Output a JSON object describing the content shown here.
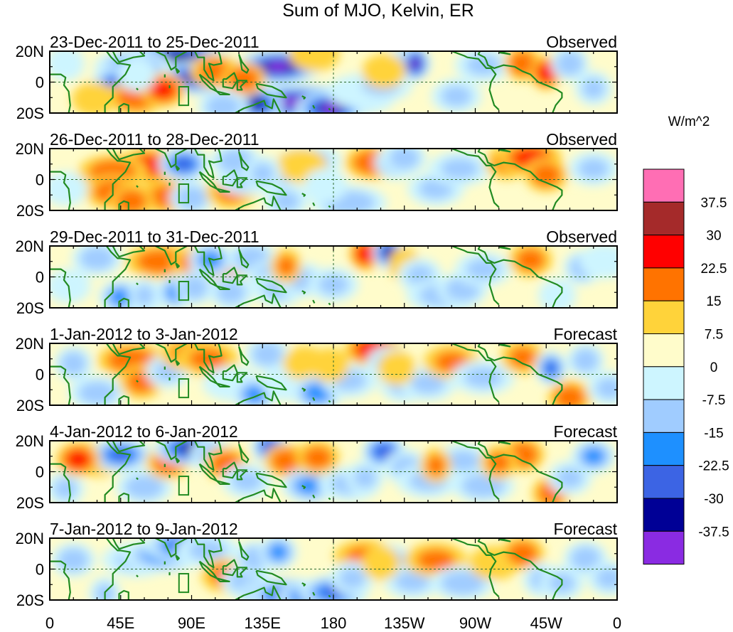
{
  "title": "Sum of MJO, Kelvin, ER",
  "units": "W/m^2",
  "colorbar": {
    "colors": [
      "#ff6eb4",
      "#a52a2a",
      "#ff0000",
      "#ff7300",
      "#ffd33a",
      "#fffccb",
      "#cdf5ff",
      "#a0ccff",
      "#1e90ff",
      "#3c64e4",
      "#000096",
      "#8a2be2"
    ],
    "labels": [
      "37.5",
      "30",
      "22.5",
      "15",
      "7.5",
      "0",
      "-7.5",
      "-15",
      "-22.5",
      "-30",
      "-37.5"
    ]
  },
  "x_ticks": [
    "0",
    "45E",
    "90E",
    "135E",
    "180",
    "135W",
    "90W",
    "45W",
    "0"
  ],
  "y_ticks": [
    "20N",
    "0",
    "20S"
  ],
  "panels": [
    {
      "date": "23-Dec-2011 to 25-Dec-2011",
      "status": "Observed",
      "anoms": [
        [
          80,
          0.8,
          35,
          -42
        ],
        [
          95,
          0.15,
          30,
          -40
        ],
        [
          145,
          0.5,
          28,
          -45
        ],
        [
          158,
          -0.65,
          60,
          -45
        ],
        [
          178,
          -0.85,
          22,
          -45
        ],
        [
          132,
          -0.7,
          16,
          -40
        ],
        [
          53,
          0.5,
          25,
          -25
        ],
        [
          42,
          -0.05,
          16,
          -30
        ],
        [
          55,
          -0.5,
          18,
          22
        ],
        [
          72,
          -0.25,
          14,
          25
        ],
        [
          105,
          0.35,
          16,
          18
        ],
        [
          123,
          0.1,
          14,
          22
        ],
        [
          110,
          -0.8,
          16,
          -20
        ],
        [
          168,
          0.9,
          16,
          10
        ],
        [
          198,
          -0.3,
          22,
          -12
        ],
        [
          210,
          -0.1,
          20,
          -15
        ],
        [
          228,
          0.6,
          14,
          -25
        ],
        [
          232,
          0.6,
          9,
          -45
        ],
        [
          258,
          -0.45,
          16,
          -15
        ],
        [
          275,
          0.55,
          18,
          -15
        ],
        [
          300,
          0.6,
          12,
          22
        ],
        [
          315,
          0.3,
          10,
          28
        ],
        [
          330,
          0.6,
          12,
          -22
        ],
        [
          345,
          -0.2,
          12,
          -15
        ],
        [
          28,
          -0.55,
          14,
          12
        ],
        [
          10,
          0.6,
          12,
          -10
        ],
        [
          55,
          0.25,
          12,
          -10
        ],
        [
          212,
          0.35,
          14,
          10
        ]
      ]
    },
    {
      "date": "26-Dec-2011 to 28-Dec-2011",
      "status": "Observed",
      "anoms": [
        [
          63,
          0.45,
          22,
          25
        ],
        [
          75,
          -0.55,
          20,
          18
        ],
        [
          90,
          -0.6,
          14,
          -20
        ],
        [
          85,
          0.5,
          16,
          -32
        ],
        [
          40,
          0.25,
          22,
          20
        ],
        [
          40,
          -0.4,
          18,
          20
        ],
        [
          115,
          -0.4,
          16,
          15
        ],
        [
          125,
          0.05,
          20,
          -15
        ],
        [
          143,
          0.1,
          16,
          -15
        ],
        [
          118,
          0.6,
          16,
          -22
        ],
        [
          150,
          -0.7,
          14,
          -15
        ],
        [
          190,
          -0.75,
          24,
          -20
        ],
        [
          205,
          0.55,
          18,
          22
        ],
        [
          220,
          0.55,
          14,
          -25
        ],
        [
          225,
          0.7,
          14,
          -20
        ],
        [
          245,
          -0.3,
          18,
          -15
        ],
        [
          260,
          0.35,
          20,
          -15
        ],
        [
          290,
          0.55,
          14,
          15
        ],
        [
          305,
          0.7,
          20,
          25
        ],
        [
          315,
          0.15,
          14,
          20
        ],
        [
          345,
          0.35,
          16,
          -15
        ],
        [
          165,
          0.6,
          20,
          -18
        ],
        [
          160,
          0.45,
          16,
          8
        ],
        [
          175,
          -0.2,
          14,
          -10
        ],
        [
          10,
          -0.3,
          14,
          -10
        ],
        [
          52,
          -0.7,
          14,
          20
        ],
        [
          135,
          0.2,
          12,
          -15
        ]
      ]
    },
    {
      "date": "29-Dec-2011 to 31-Dec-2011",
      "status": "Observed",
      "anoms": [
        [
          58,
          -0.65,
          16,
          -20
        ],
        [
          70,
          0.5,
          22,
          20
        ],
        [
          95,
          0.45,
          18,
          22
        ],
        [
          110,
          0.2,
          16,
          20
        ],
        [
          80,
          -0.5,
          12,
          -25
        ],
        [
          92,
          -0.35,
          12,
          -20
        ],
        [
          30,
          0.6,
          16,
          -20
        ],
        [
          45,
          -0.65,
          14,
          -25
        ],
        [
          102,
          0.55,
          14,
          -25
        ],
        [
          115,
          -0.5,
          14,
          -18
        ],
        [
          128,
          0.6,
          16,
          -20
        ],
        [
          140,
          0.0,
          14,
          -20
        ],
        [
          145,
          -0.4,
          16,
          -15
        ],
        [
          160,
          -0.1,
          16,
          -15
        ],
        [
          200,
          0.75,
          10,
          27
        ],
        [
          215,
          0.8,
          10,
          -40
        ],
        [
          225,
          0.4,
          10,
          10
        ],
        [
          235,
          0.05,
          14,
          -15
        ],
        [
          250,
          -0.6,
          24,
          -18
        ],
        [
          262,
          -0.4,
          16,
          -20
        ],
        [
          275,
          0.25,
          18,
          -15
        ],
        [
          305,
          0.55,
          14,
          18
        ],
        [
          322,
          -0.6,
          12,
          -10
        ],
        [
          338,
          0.3,
          12,
          -20
        ],
        [
          352,
          0.5,
          16,
          -10
        ],
        [
          12,
          -0.3,
          14,
          -12
        ],
        [
          180,
          -0.25,
          16,
          -15
        ],
        [
          60,
          -0.6,
          10,
          -15
        ],
        [
          150,
          0.35,
          10,
          15
        ]
      ]
    },
    {
      "date": "1-Jan-2012 to 3-Jan-2012",
      "status": "Forecast",
      "anoms": [
        [
          30,
          -0.6,
          18,
          -18
        ],
        [
          52,
          0.45,
          22,
          22
        ],
        [
          58,
          -0.25,
          14,
          18
        ],
        [
          75,
          0.1,
          14,
          -15
        ],
        [
          90,
          0.65,
          20,
          20
        ],
        [
          100,
          0.5,
          20,
          15
        ],
        [
          115,
          -0.3,
          18,
          -10
        ],
        [
          130,
          -0.65,
          14,
          -25
        ],
        [
          138,
          0.65,
          14,
          -20
        ],
        [
          152,
          -0.3,
          18,
          -10
        ],
        [
          162,
          0.35,
          14,
          10
        ],
        [
          170,
          -0.6,
          16,
          -28
        ],
        [
          190,
          -0.2,
          18,
          -15
        ],
        [
          205,
          0.8,
          18,
          28
        ],
        [
          215,
          0.35,
          14,
          -15
        ],
        [
          225,
          -0.35,
          16,
          -15
        ],
        [
          240,
          -0.3,
          18,
          -15
        ],
        [
          255,
          0.4,
          18,
          15
        ],
        [
          275,
          -0.1,
          20,
          -15
        ],
        [
          300,
          0.55,
          14,
          15
        ],
        [
          318,
          0.2,
          10,
          -30
        ],
        [
          330,
          -0.75,
          14,
          20
        ],
        [
          340,
          0.45,
          12,
          -20
        ],
        [
          355,
          -0.45,
          14,
          -15
        ],
        [
          15,
          0.35,
          12,
          -20
        ],
        [
          178,
          0.3,
          12,
          10
        ],
        [
          220,
          0.2,
          12,
          10
        ]
      ]
    },
    {
      "date": "4-Jan-2012 to 6-Jan-2012",
      "status": "Forecast",
      "anoms": [
        [
          30,
          0.4,
          20,
          15
        ],
        [
          45,
          0.55,
          20,
          -30
        ],
        [
          60,
          -0.5,
          18,
          -20
        ],
        [
          75,
          0.3,
          14,
          20
        ],
        [
          90,
          0.75,
          24,
          -40
        ],
        [
          103,
          0.55,
          14,
          -20
        ],
        [
          112,
          0.25,
          14,
          20
        ],
        [
          125,
          -0.3,
          16,
          -15
        ],
        [
          140,
          0.8,
          12,
          -35
        ],
        [
          150,
          0.35,
          14,
          20
        ],
        [
          165,
          -0.45,
          18,
          -25
        ],
        [
          190,
          -0.4,
          20,
          -15
        ],
        [
          212,
          0.65,
          14,
          -35
        ],
        [
          226,
          0.15,
          14,
          -18
        ],
        [
          240,
          -0.3,
          20,
          -15
        ],
        [
          262,
          0.35,
          18,
          -15
        ],
        [
          275,
          -0.45,
          20,
          -20
        ],
        [
          300,
          0.55,
          14,
          22
        ],
        [
          318,
          -0.7,
          12,
          20
        ],
        [
          330,
          -0.2,
          14,
          -15
        ],
        [
          345,
          0.5,
          14,
          -25
        ],
        [
          10,
          -0.55,
          12,
          -15
        ],
        [
          18,
          0.4,
          14,
          25
        ],
        [
          170,
          0.45,
          14,
          18
        ],
        [
          200,
          -0.2,
          12,
          -15
        ],
        [
          285,
          0.3,
          12,
          15
        ],
        [
          245,
          0.2,
          10,
          15
        ]
      ]
    },
    {
      "date": "7-Jan-2012 to 9-Jan-2012",
      "status": "Forecast",
      "anoms": [
        [
          35,
          -0.8,
          10,
          -15
        ],
        [
          55,
          0.3,
          22,
          -15
        ],
        [
          72,
          0.45,
          26,
          -25
        ],
        [
          88,
          0.75,
          28,
          -35
        ],
        [
          100,
          0.6,
          20,
          -15
        ],
        [
          110,
          -0.2,
          14,
          15
        ],
        [
          125,
          -0.4,
          16,
          -20
        ],
        [
          140,
          -0.85,
          20,
          -35
        ],
        [
          155,
          -0.85,
          28,
          -45
        ],
        [
          170,
          -0.9,
          26,
          -40
        ],
        [
          180,
          -0.75,
          22,
          -30
        ],
        [
          200,
          0.4,
          20,
          15
        ],
        [
          215,
          0.25,
          16,
          -20
        ],
        [
          230,
          -0.4,
          18,
          -15
        ],
        [
          245,
          0.3,
          20,
          15
        ],
        [
          262,
          -0.45,
          20,
          -20
        ],
        [
          282,
          0.2,
          16,
          10
        ],
        [
          300,
          0.5,
          14,
          20
        ],
        [
          312,
          -0.35,
          12,
          -15
        ],
        [
          325,
          -0.45,
          14,
          -15
        ],
        [
          340,
          0.35,
          14,
          -20
        ],
        [
          355,
          -0.3,
          14,
          -15
        ],
        [
          15,
          0.3,
          14,
          -20
        ],
        [
          130,
          0.35,
          12,
          -20
        ],
        [
          145,
          0.55,
          12,
          -25
        ],
        [
          192,
          -0.3,
          14,
          -15
        ],
        [
          210,
          0.2,
          12,
          10
        ]
      ]
    }
  ]
}
